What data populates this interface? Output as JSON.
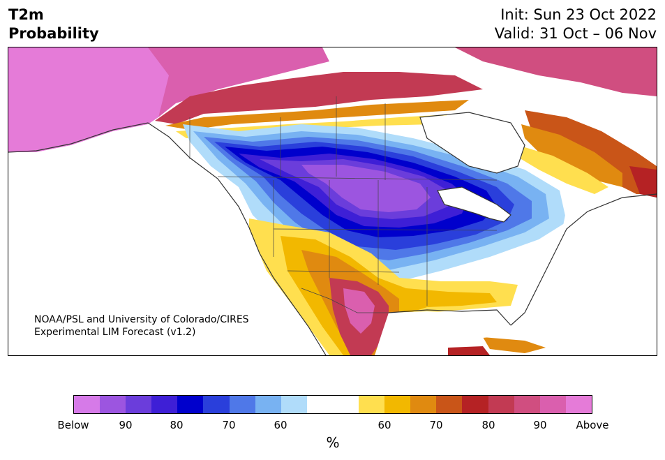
{
  "header": {
    "title_line1": "T2m",
    "title_line2": "Probability",
    "init": "Init: Sun 23 Oct 2022",
    "valid": "Valid: 31 Oct – 06 Nov"
  },
  "credit": {
    "line1": "NOAA/PSL and University of Colorado/CIRES",
    "line2": "Experimental LIM Forecast (v1.2)"
  },
  "colorbar": {
    "unit": "%",
    "colors": [
      "#d67ae8",
      "#9c55e0",
      "#6b3ddb",
      "#3e1fd6",
      "#0000cc",
      "#2a3fdb",
      "#4f78e8",
      "#78b2f2",
      "#b0dcfa",
      "#ffffff",
      "#ffffff",
      "#ffdf4f",
      "#f2b800",
      "#e08a10",
      "#c95518",
      "#b52224",
      "#c23a53",
      "#d04e80",
      "#da5fae",
      "#e57bd8"
    ],
    "labels": [
      "Below",
      "90",
      "80",
      "70",
      "60",
      "60",
      "70",
      "80",
      "90",
      "Above"
    ]
  },
  "colors": {
    "below_near": "#b0dcfa",
    "below_strong": "#0000cc",
    "below_max": "#9c55e0",
    "above_near": "#ffdf4f",
    "above_mid": "#e08a10",
    "above_strong": "#b52224",
    "above_max": "#e57bd8"
  }
}
